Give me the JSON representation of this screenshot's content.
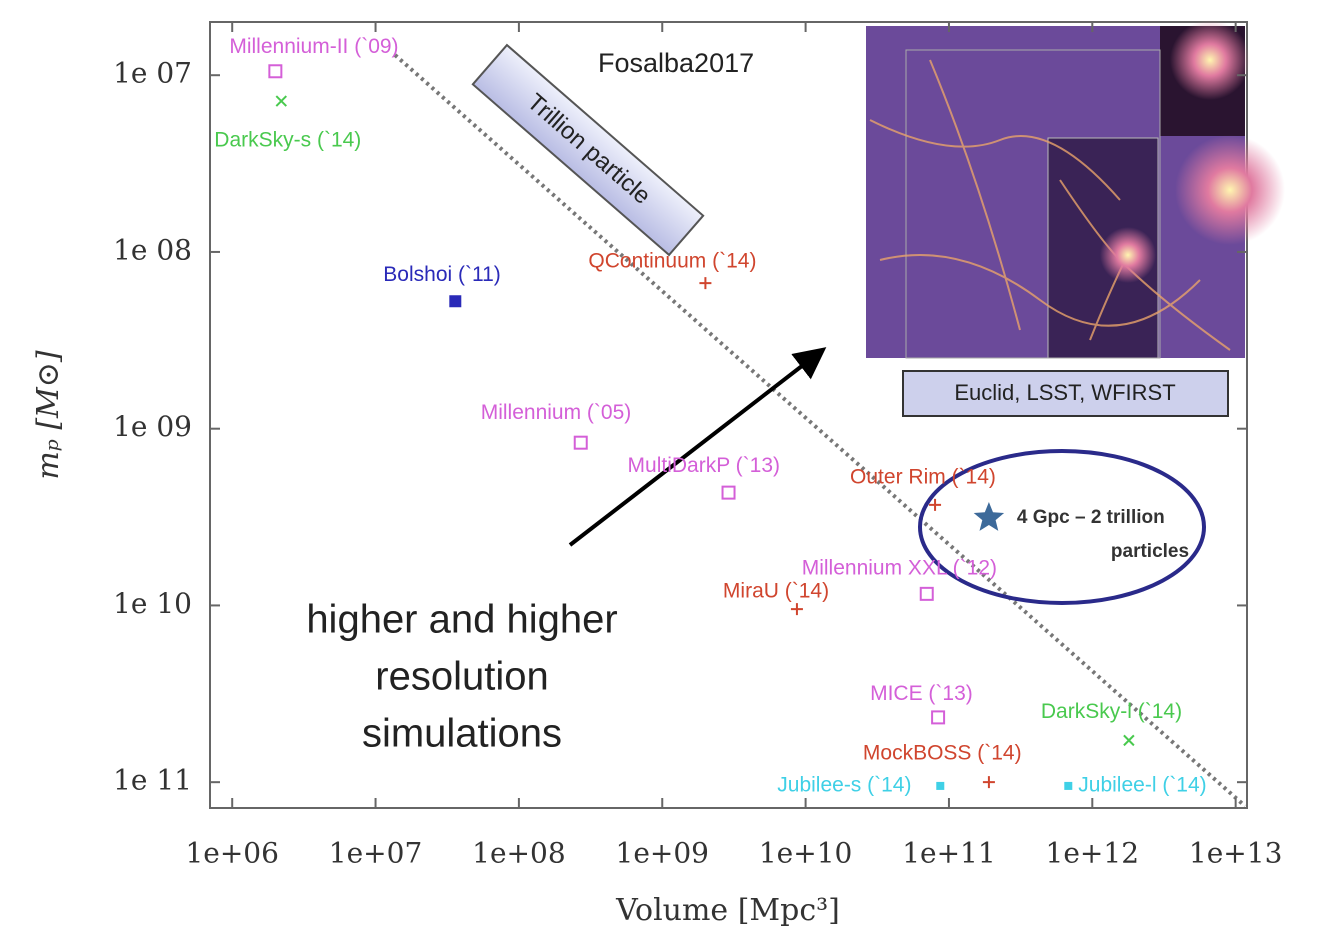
{
  "chart_data": {
    "type": "scatter",
    "xlabel": "Volume [Mpc³]",
    "ylabel": "mₚ  [M⊙]",
    "xscale": "log",
    "yscale": "log",
    "xlim": [
      700000,
      12000000000000
    ],
    "ylim": [
      140000000000,
      5000000
    ],
    "xticks": [
      {
        "value": 1000000,
        "label": "1e+06"
      },
      {
        "value": 10000000,
        "label": "1e+07"
      },
      {
        "value": 100000000,
        "label": "1e+08"
      },
      {
        "value": 1000000000,
        "label": "1e+09"
      },
      {
        "value": 10000000000,
        "label": "1e+10"
      },
      {
        "value": 100000000000,
        "label": "1e+11"
      },
      {
        "value": 1000000000000,
        "label": "1e+12"
      },
      {
        "value": 10000000000000,
        "label": "1e+13"
      }
    ],
    "yticks": [
      {
        "value": 10000000,
        "label": "1e 07"
      },
      {
        "value": 100000000,
        "label": "1e 08"
      },
      {
        "value": 1000000000,
        "label": "1e 09"
      },
      {
        "value": 10000000000,
        "label": "1e 10"
      },
      {
        "value": 100000000000,
        "label": "1e 11"
      }
    ],
    "grid": false,
    "series": [
      {
        "name": "Millennium-II (`09)",
        "color": "#d45fd8",
        "marker": "square",
        "x": [
          2000000
        ],
        "values": [
          9500000
        ]
      },
      {
        "name": "DarkSky-s (`14)",
        "color": "#49c94e",
        "marker": "x",
        "x": [
          2200000
        ],
        "values": [
          14000000
        ]
      },
      {
        "name": "Bolshoi (`11)",
        "color": "#2a2ab8",
        "marker": "squarex",
        "x": [
          36000000
        ],
        "values": [
          190000000
        ]
      },
      {
        "name": "QContinuum (`14)",
        "color": "#d0452e",
        "marker": "plus",
        "x": [
          2000000000
        ],
        "values": [
          150000000
        ]
      },
      {
        "name": "Millennium (`05)",
        "color": "#d45fd8",
        "marker": "square",
        "x": [
          270000000
        ],
        "values": [
          1200000000
        ]
      },
      {
        "name": "MultiDarkP (`13)",
        "color": "#d45fd8",
        "marker": "square",
        "x": [
          2900000000
        ],
        "values": [
          2300000000
        ]
      },
      {
        "name": "Outer Rim (`14)",
        "color": "#d0452e",
        "marker": "plus",
        "x": [
          80000000000
        ],
        "values": [
          2700000000
        ]
      },
      {
        "name": "Millennium XXL (`12)",
        "color": "#d45fd8",
        "marker": "square",
        "x": [
          70000000000
        ],
        "values": [
          8600000000
        ]
      },
      {
        "name": "MiraU (`14)",
        "color": "#d0452e",
        "marker": "plus",
        "x": [
          8700000000
        ],
        "values": [
          10500000000
        ]
      },
      {
        "name": "MICE (`13)",
        "color": "#d45fd8",
        "marker": "square",
        "x": [
          84000000000
        ],
        "values": [
          43000000000
        ]
      },
      {
        "name": "DarkSky-l (`14)",
        "color": "#49c94e",
        "marker": "x",
        "x": [
          1800000000000
        ],
        "values": [
          58000000000
        ]
      },
      {
        "name": "MockBOSS (`14)",
        "color": "#d0452e",
        "marker": "plus",
        "x": [
          190000000000
        ],
        "values": [
          100000000000
        ]
      },
      {
        "name": "Jubilee-s (`14)",
        "color": "#3fd0e6",
        "marker": "dot",
        "x": [
          87000000000
        ],
        "values": [
          105000000000
        ]
      },
      {
        "name": "Jubilee-l (`14)",
        "color": "#3fd0e6",
        "marker": "dot",
        "x": [
          680000000000
        ],
        "values": [
          105000000000
        ]
      }
    ],
    "target": {
      "label": [
        "4 Gpc – 2 trillion",
        "particles"
      ],
      "color": "#3d6a9a",
      "x": 190000000000,
      "y": 3200000000
    },
    "annotations": {
      "trillion": "Trillion particle",
      "surveys": "Euclid, LSST, WFIRST",
      "source": "Fosalba2017",
      "resolution": [
        "higher and higher",
        "resolution",
        "simulations"
      ]
    }
  }
}
